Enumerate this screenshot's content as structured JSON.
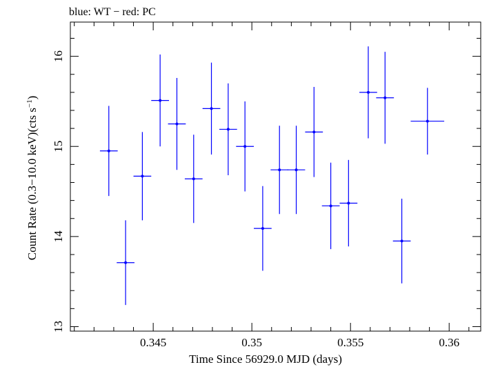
{
  "chart_data": {
    "type": "scatter",
    "title": "blue: WT − red: PC",
    "xlabel": "Time Since 56929.0 MJD (days)",
    "ylabel_main": "Count Rate (0.3−10.0 keV)(cts s",
    "ylabel_sup": "−1",
    "ylabel_end": ")",
    "xlim": [
      0.3408,
      0.3616
    ],
    "ylim": [
      12.95,
      16.38
    ],
    "xticks": [
      {
        "value": 0.345,
        "label": "0.345"
      },
      {
        "value": 0.35,
        "label": "0.35"
      },
      {
        "value": 0.355,
        "label": "0.355"
      },
      {
        "value": 0.36,
        "label": "0.36"
      }
    ],
    "xminor_step": 0.001,
    "yticks": [
      {
        "value": 13,
        "label": "13"
      },
      {
        "value": 14,
        "label": "14"
      },
      {
        "value": 15,
        "label": "15"
      },
      {
        "value": 16,
        "label": "16"
      }
    ],
    "yminor_step": 0.2,
    "grid": false,
    "legend": "none",
    "series_color": "#0000ff",
    "series": [
      {
        "values": [
          {
            "x": 0.34275,
            "y": 14.95,
            "xerr": 0.00045,
            "yerr": 0.5
          },
          {
            "x": 0.3436,
            "y": 13.71,
            "xerr": 0.00045,
            "yerr": 0.47
          },
          {
            "x": 0.34445,
            "y": 14.67,
            "xerr": 0.00045,
            "yerr": 0.49
          },
          {
            "x": 0.34535,
            "y": 15.51,
            "xerr": 0.00045,
            "yerr": 0.51
          },
          {
            "x": 0.3462,
            "y": 15.25,
            "xerr": 0.00045,
            "yerr": 0.51
          },
          {
            "x": 0.34705,
            "y": 14.64,
            "xerr": 0.00045,
            "yerr": 0.49
          },
          {
            "x": 0.34795,
            "y": 15.42,
            "xerr": 0.00045,
            "yerr": 0.51
          },
          {
            "x": 0.3488,
            "y": 15.19,
            "xerr": 0.00045,
            "yerr": 0.51
          },
          {
            "x": 0.34965,
            "y": 15.0,
            "xerr": 0.00045,
            "yerr": 0.5
          },
          {
            "x": 0.35055,
            "y": 14.09,
            "xerr": 0.00045,
            "yerr": 0.47
          },
          {
            "x": 0.3514,
            "y": 14.74,
            "xerr": 0.00045,
            "yerr": 0.49
          },
          {
            "x": 0.35225,
            "y": 14.74,
            "xerr": 0.00045,
            "yerr": 0.49
          },
          {
            "x": 0.35315,
            "y": 15.16,
            "xerr": 0.00045,
            "yerr": 0.5
          },
          {
            "x": 0.354,
            "y": 14.34,
            "xerr": 0.00045,
            "yerr": 0.48
          },
          {
            "x": 0.3549,
            "y": 14.37,
            "xerr": 0.00045,
            "yerr": 0.48
          },
          {
            "x": 0.3559,
            "y": 15.6,
            "xerr": 0.00045,
            "yerr": 0.51
          },
          {
            "x": 0.35675,
            "y": 15.54,
            "xerr": 0.00045,
            "yerr": 0.51
          },
          {
            "x": 0.3576,
            "y": 13.95,
            "xerr": 0.00045,
            "yerr": 0.47
          },
          {
            "x": 0.3589,
            "y": 15.28,
            "xerr": 0.00085,
            "yerr": 0.37
          }
        ]
      }
    ]
  }
}
